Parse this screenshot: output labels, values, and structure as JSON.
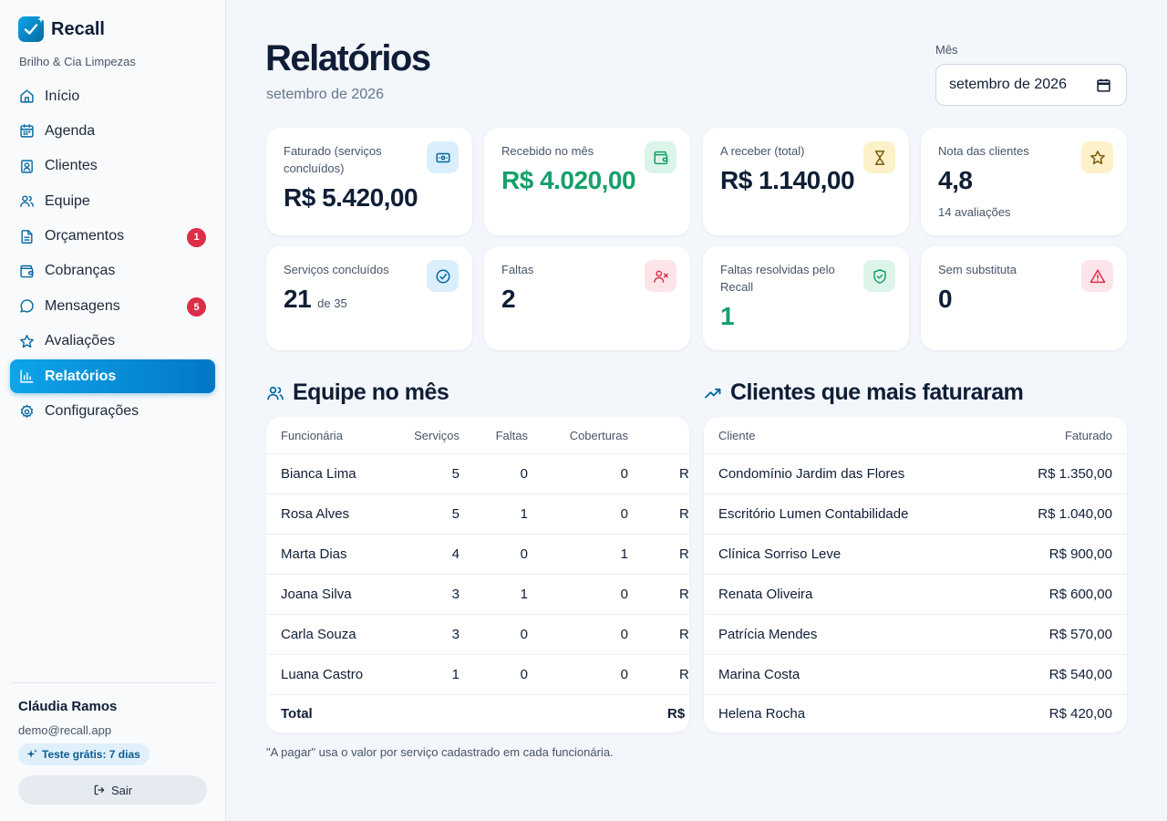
{
  "brand": {
    "name": "Recall",
    "company": "Brilho & Cia Limpezas"
  },
  "nav": [
    {
      "label": "Início",
      "icon": "home-icon"
    },
    {
      "label": "Agenda",
      "icon": "calendar-icon"
    },
    {
      "label": "Clientes",
      "icon": "contact-icon"
    },
    {
      "label": "Equipe",
      "icon": "users-icon"
    },
    {
      "label": "Orçamentos",
      "icon": "document-icon",
      "badge": "1"
    },
    {
      "label": "Cobranças",
      "icon": "wallet-icon"
    },
    {
      "label": "Mensagens",
      "icon": "chat-icon",
      "badge": "5"
    },
    {
      "label": "Avaliações",
      "icon": "star-icon"
    },
    {
      "label": "Relatórios",
      "icon": "bar-chart-icon",
      "active": true
    },
    {
      "label": "Configurações",
      "icon": "gear-icon"
    }
  ],
  "user": {
    "name": "Cláudia Ramos",
    "email": "demo@recall.app",
    "trial": "Teste grátis: 7 dias",
    "logout": "Sair"
  },
  "header": {
    "title": "Relatórios",
    "subtitle": "setembro de 2026",
    "month_label": "Mês",
    "month_value": "setembro de 2026"
  },
  "stats": {
    "billed": {
      "label": "Faturado (serviços concluídos)",
      "value": "R$ 5.420,00"
    },
    "received": {
      "label": "Recebido no mês",
      "value": "R$ 4.020,00"
    },
    "receivable": {
      "label": "A receber (total)",
      "value": "R$ 1.140,00"
    },
    "rating": {
      "label": "Nota das clientes",
      "value": "4,8",
      "note": "14 avaliações"
    },
    "completed": {
      "label": "Serviços concluídos",
      "value": "21",
      "of": "de 35"
    },
    "absences": {
      "label": "Faltas",
      "value": "2"
    },
    "resolved": {
      "label": "Faltas resolvidas pelo Recall",
      "value": "1"
    },
    "no_sub": {
      "label": "Sem substituta",
      "value": "0"
    }
  },
  "team": {
    "title": "Equipe no mês",
    "headers": {
      "name": "Funcionária",
      "services": "Serviços",
      "absences": "Faltas",
      "coverages": "Coberturas"
    },
    "rows": [
      {
        "name": "Bianca Lima",
        "services": "5",
        "absences": "0",
        "coverages": "0",
        "pay": "R"
      },
      {
        "name": "Rosa Alves",
        "services": "5",
        "absences": "1",
        "coverages": "0",
        "pay": "R"
      },
      {
        "name": "Marta Dias",
        "services": "4",
        "absences": "0",
        "coverages": "1",
        "pay": "R"
      },
      {
        "name": "Joana Silva",
        "services": "3",
        "absences": "1",
        "coverages": "0",
        "pay": "R"
      },
      {
        "name": "Carla Souza",
        "services": "3",
        "absences": "0",
        "coverages": "0",
        "pay": "R"
      },
      {
        "name": "Luana Castro",
        "services": "1",
        "absences": "0",
        "coverages": "0",
        "pay": "R"
      }
    ],
    "total": {
      "label": "Total",
      "pay": "R$"
    }
  },
  "clients": {
    "title": "Clientes que mais faturaram",
    "headers": {
      "client": "Cliente",
      "billed": "Faturado"
    },
    "rows": [
      {
        "name": "Condomínio Jardim das Flores",
        "billed": "R$ 1.350,00"
      },
      {
        "name": "Escritório Lumen Contabilidade",
        "billed": "R$ 1.040,00"
      },
      {
        "name": "Clínica Sorriso Leve",
        "billed": "R$ 900,00"
      },
      {
        "name": "Renata Oliveira",
        "billed": "R$ 600,00"
      },
      {
        "name": "Patrícia Mendes",
        "billed": "R$ 570,00"
      },
      {
        "name": "Marina Costa",
        "billed": "R$ 540,00"
      },
      {
        "name": "Helena Rocha",
        "billed": "R$ 420,00"
      }
    ]
  },
  "footnote": "\"A pagar\" usa o valor por serviço cadastrado em cada funcionária.",
  "colors": {
    "accent": "#0ea5e9",
    "accent_dark": "#0277c6",
    "green": "#16a06a",
    "danger": "#dc2e48",
    "text": "#0f1e36"
  }
}
